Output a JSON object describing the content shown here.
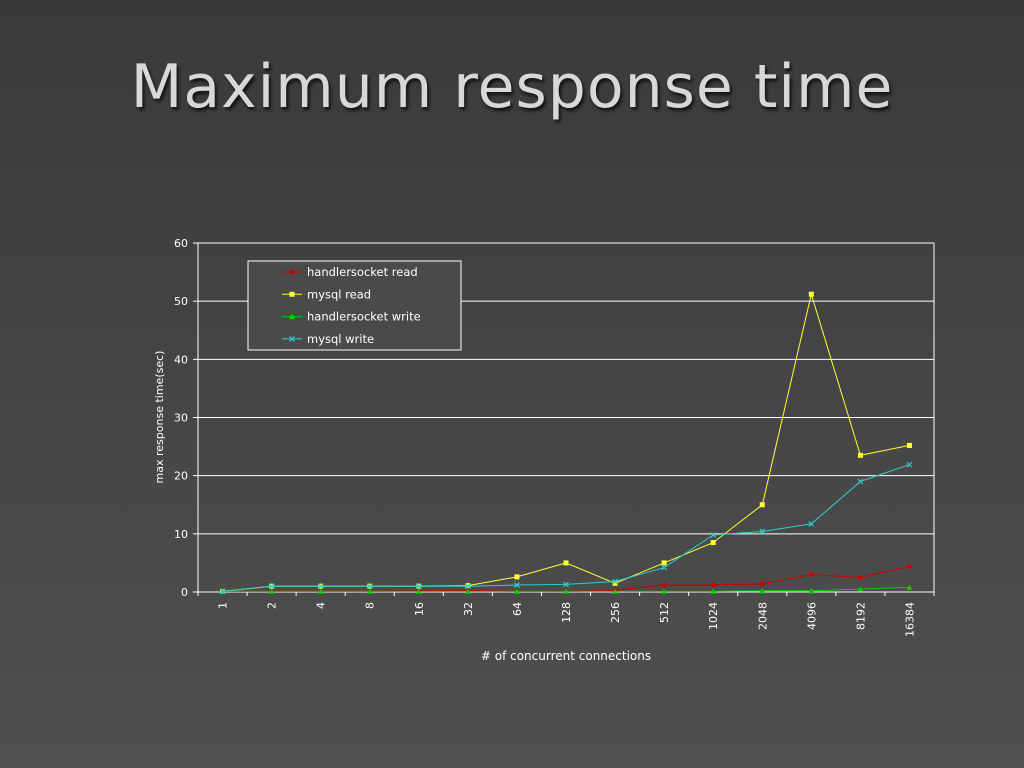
{
  "slide": {
    "title": "Maximum response time"
  },
  "chart_data": {
    "type": "line",
    "title": "",
    "xlabel": "# of concurrent connections",
    "ylabel": "max response time(sec)",
    "ylim": [
      0,
      60
    ],
    "yticks": [
      0,
      10,
      20,
      30,
      40,
      50,
      60
    ],
    "grid": true,
    "legend_position": "top-left",
    "categories": [
      "1",
      "2",
      "4",
      "8",
      "16",
      "32",
      "64",
      "128",
      "256",
      "512",
      "1024",
      "2048",
      "4096",
      "8192",
      "16384"
    ],
    "series": [
      {
        "name": "handlersocket read",
        "color": "#cc0000",
        "marker": "diamond",
        "values": [
          0.1,
          0.1,
          0.1,
          0.1,
          0.2,
          0.3,
          0.1,
          0.1,
          0.3,
          1.2,
          1.2,
          1.4,
          3.0,
          2.5,
          4.4
        ]
      },
      {
        "name": "mysql read",
        "color": "#ffff33",
        "marker": "square",
        "values": [
          0.1,
          1.0,
          1.0,
          1.0,
          1.0,
          1.1,
          2.6,
          5.0,
          1.5,
          5.0,
          8.5,
          15.0,
          51.2,
          23.5,
          25.2
        ]
      },
      {
        "name": "handlersocket write",
        "color": "#00cc00",
        "marker": "triangle",
        "values": [
          0.1,
          0.1,
          0.1,
          0.1,
          0.1,
          0.1,
          0.1,
          0.1,
          0.1,
          0.1,
          0.1,
          0.2,
          0.2,
          0.5,
          0.8
        ]
      },
      {
        "name": "mysql write",
        "color": "#33cccc",
        "marker": "x",
        "values": [
          0.1,
          1.0,
          1.0,
          1.0,
          1.0,
          1.0,
          1.2,
          1.3,
          1.8,
          4.2,
          9.8,
          10.4,
          11.7,
          19.0,
          21.9
        ]
      }
    ]
  }
}
